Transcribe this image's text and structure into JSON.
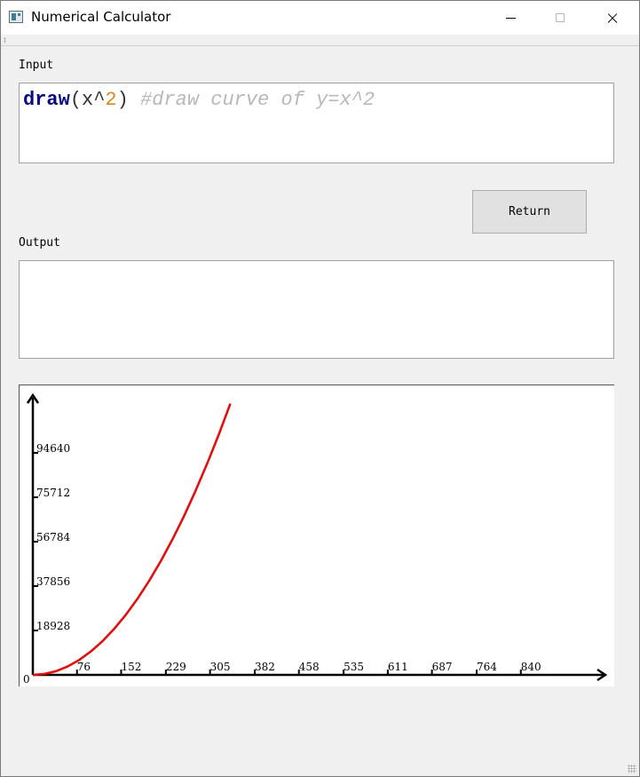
{
  "window": {
    "title": "Numerical Calculator",
    "icon": "app-window-icon"
  },
  "input": {
    "label": "Input",
    "code": {
      "keyword": "draw",
      "open": "(x^",
      "number": "2",
      "close": ")",
      "comment": "#draw curve of y=x^2"
    }
  },
  "return_button": {
    "label": "Return"
  },
  "output": {
    "label": "Output",
    "value": ""
  },
  "colors": {
    "curve": "#e01010",
    "keyword": "#0a0a80",
    "number": "#d08a20",
    "comment": "#b8b8b8"
  },
  "chart_data": {
    "type": "line",
    "origin_label": "0",
    "x_ticks": [
      76,
      152,
      229,
      305,
      382,
      458,
      535,
      611,
      687,
      764,
      840
    ],
    "y_ticks": [
      18928,
      37856,
      56784,
      75712,
      94640
    ],
    "xlim": [
      0,
      912
    ],
    "ylim": [
      0,
      118000
    ],
    "series": [
      {
        "function": "x^2",
        "x": [
          0,
          20,
          40,
          60,
          80,
          100,
          120,
          140,
          160,
          180,
          200,
          220,
          240,
          260,
          280,
          300,
          320,
          340
        ],
        "y": [
          0,
          400,
          1600,
          3600,
          6400,
          10000,
          14400,
          19600,
          25600,
          32400,
          40000,
          48400,
          57600,
          67600,
          78400,
          90000,
          102400,
          115600
        ]
      }
    ]
  }
}
